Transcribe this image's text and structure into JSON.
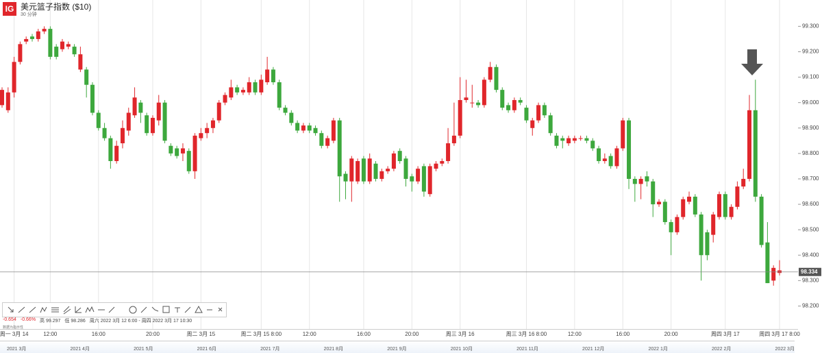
{
  "header": {
    "logo": "IG",
    "title": "美元篮子指数 ($10)",
    "interval": "30 分钟"
  },
  "info": {
    "change": "-0.654",
    "change_pct": "-0.66%",
    "high": "高 99.297",
    "low": "低 98.286",
    "range": "周六 2022 3月 12 6:00 - 周四 2022 3月 17 10:30",
    "note": "数据为指示性"
  },
  "chart_data": {
    "type": "candlestick",
    "categories": [
      null,
      null,
      "周一 3月 14",
      null,
      null,
      null,
      null,
      null,
      "12:00",
      null,
      null,
      null,
      null,
      null,
      null,
      null,
      "16:00",
      null,
      null,
      null,
      null,
      null,
      null,
      null,
      null,
      "20:00",
      null,
      null,
      null,
      null,
      null,
      null,
      null,
      "周二 3月 15",
      null,
      null,
      null,
      null,
      null,
      null,
      null,
      null,
      null,
      "周二 3月 15 8:00",
      null,
      null,
      null,
      null,
      null,
      null,
      null,
      "12:00",
      null,
      null,
      null,
      null,
      null,
      null,
      null,
      null,
      "16:00",
      null,
      null,
      null,
      null,
      null,
      null,
      null,
      "20:00",
      null,
      null,
      null,
      null,
      null,
      null,
      null,
      "周三 3月 16",
      null,
      null,
      null,
      null,
      null,
      null,
      null,
      null,
      null,
      null,
      "周三 3月 16 8:00",
      null,
      null,
      null,
      null,
      null,
      null,
      null,
      "12:00",
      null,
      null,
      null,
      null,
      null,
      null,
      null,
      "16:00",
      null,
      null,
      null,
      null,
      null,
      null,
      null,
      "20:00",
      null,
      null,
      null,
      null,
      null,
      null,
      null,
      null,
      "周四 3月 17",
      null,
      null,
      null,
      null,
      null,
      null,
      null,
      null,
      "周四 3月 17 8:00"
    ],
    "open": [
      98.99,
      98.97,
      99.04,
      99.16,
      99.24,
      99.26,
      99.25,
      99.28,
      99.29,
      99.22,
      99.21,
      99.22,
      99.22,
      99.13,
      99.13,
      99.07,
      98.96,
      98.9,
      98.86,
      98.77,
      98.84,
      98.89,
      98.95,
      99.0,
      98.95,
      98.88,
      98.93,
      99.0,
      98.83,
      98.82,
      98.8,
      98.81,
      98.73,
      98.86,
      98.88,
      98.9,
      98.93,
      99.0,
      99.02,
      99.06,
      99.04,
      99.04,
      99.08,
      99.04,
      99.08,
      99.13,
      99.08,
      98.98,
      98.96,
      98.92,
      98.89,
      98.91,
      98.9,
      98.88,
      98.83,
      98.85,
      98.93,
      98.72,
      98.69,
      98.69,
      98.78,
      98.69,
      98.76,
      98.7,
      98.73,
      98.74,
      98.81,
      98.78,
      98.71,
      98.69,
      98.75,
      98.64,
      98.74,
      98.76,
      98.77,
      98.84,
      98.87,
      99.01,
      99.0,
      99.0,
      98.99,
      99.09,
      99.14,
      99.05,
      98.99,
      98.97,
      99.01,
      98.98,
      98.9,
      98.93,
      98.99,
      98.95,
      98.87,
      98.86,
      98.84,
      98.85,
      98.86,
      98.86,
      98.85,
      98.82,
      98.77,
      98.79,
      98.75,
      98.82,
      98.93,
      98.7,
      98.68,
      98.71,
      98.69,
      98.6,
      98.61,
      98.53,
      98.49,
      98.55,
      98.61,
      98.63,
      98.56,
      98.49,
      98.48,
      98.55,
      98.64,
      98.55,
      98.59,
      98.67,
      98.7,
      98.97,
      98.63,
      98.45,
      98.3,
      98.33
    ],
    "high": [
      99.06,
      99.06,
      99.18,
      99.24,
      99.26,
      99.27,
      99.29,
      99.3,
      99.3,
      99.23,
      99.25,
      99.24,
      99.23,
      99.22,
      99.14,
      99.08,
      98.97,
      98.92,
      98.87,
      98.85,
      98.93,
      98.98,
      99.06,
      99.01,
      98.96,
      98.95,
      99.03,
      99.01,
      98.84,
      98.83,
      98.84,
      98.82,
      98.88,
      98.9,
      98.92,
      98.94,
      99.01,
      99.04,
      99.09,
      99.07,
      99.06,
      99.1,
      99.09,
      99.11,
      99.18,
      99.14,
      99.09,
      98.99,
      98.97,
      98.93,
      98.92,
      98.92,
      98.91,
      98.89,
      98.87,
      98.94,
      98.94,
      98.73,
      98.79,
      98.78,
      98.79,
      98.8,
      98.77,
      98.74,
      98.75,
      98.81,
      98.82,
      98.79,
      98.72,
      98.75,
      98.76,
      98.76,
      98.77,
      98.78,
      98.9,
      99.0,
      99.1,
      99.09,
      99.07,
      99.01,
      99.1,
      99.16,
      99.15,
      99.06,
      99.0,
      99.02,
      99.02,
      98.99,
      98.94,
      99.0,
      99.0,
      98.96,
      98.88,
      98.87,
      98.87,
      98.87,
      98.87,
      98.87,
      98.86,
      98.83,
      98.8,
      98.8,
      98.83,
      98.94,
      98.94,
      98.71,
      98.71,
      98.73,
      98.7,
      98.62,
      98.62,
      98.54,
      98.56,
      98.63,
      98.65,
      98.64,
      98.57,
      98.5,
      98.57,
      98.65,
      98.65,
      98.6,
      98.69,
      98.74,
      99.03,
      99.09,
      98.64,
      98.53,
      98.36,
      98.38
    ],
    "low": [
      98.98,
      98.96,
      99.02,
      99.15,
      99.23,
      99.24,
      99.24,
      99.27,
      99.17,
      99.17,
      99.2,
      99.21,
      99.18,
      99.12,
      99.02,
      98.95,
      98.89,
      98.85,
      98.74,
      98.76,
      98.82,
      98.87,
      98.94,
      98.92,
      98.87,
      98.87,
      98.91,
      98.84,
      98.79,
      98.78,
      98.77,
      98.72,
      98.7,
      98.85,
      98.86,
      98.88,
      98.92,
      98.99,
      99.01,
      99.03,
      99.03,
      99.03,
      99.03,
      99.03,
      99.07,
      99.07,
      98.97,
      98.95,
      98.91,
      98.88,
      98.88,
      98.88,
      98.87,
      98.82,
      98.82,
      98.84,
      98.61,
      98.62,
      98.61,
      98.68,
      98.68,
      98.68,
      98.69,
      98.69,
      98.72,
      98.73,
      98.76,
      98.67,
      98.65,
      98.68,
      98.63,
      98.63,
      98.73,
      98.75,
      98.76,
      98.83,
      98.86,
      99.0,
      98.98,
      98.98,
      98.98,
      99.08,
      99.04,
      98.97,
      98.96,
      98.96,
      98.99,
      98.92,
      98.87,
      98.92,
      98.94,
      98.87,
      98.82,
      98.82,
      98.83,
      98.84,
      98.85,
      98.84,
      98.81,
      98.76,
      98.76,
      98.74,
      98.74,
      98.81,
      98.66,
      98.61,
      98.62,
      98.67,
      98.55,
      98.59,
      98.52,
      98.4,
      98.48,
      98.54,
      98.6,
      98.55,
      98.3,
      98.38,
      98.45,
      98.54,
      98.54,
      98.54,
      98.58,
      98.66,
      98.69,
      98.61,
      98.43,
      98.29,
      98.28,
      98.32
    ],
    "close": [
      99.05,
      99.04,
      99.16,
      99.23,
      99.25,
      99.25,
      99.28,
      99.29,
      99.18,
      99.18,
      99.24,
      99.23,
      99.19,
      99.19,
      99.07,
      98.96,
      98.9,
      98.86,
      98.77,
      98.83,
      98.9,
      98.96,
      99.02,
      98.96,
      98.88,
      98.94,
      99.0,
      98.85,
      98.8,
      98.79,
      98.82,
      98.73,
      98.87,
      98.88,
      98.9,
      98.93,
      99.0,
      99.03,
      99.06,
      99.04,
      99.05,
      99.08,
      99.04,
      99.09,
      99.13,
      99.08,
      98.98,
      98.96,
      98.92,
      98.89,
      98.91,
      98.89,
      98.88,
      98.83,
      98.86,
      98.93,
      98.71,
      98.69,
      98.78,
      98.77,
      98.69,
      98.78,
      98.7,
      98.73,
      98.74,
      98.8,
      98.77,
      98.7,
      98.69,
      98.74,
      98.65,
      98.75,
      98.76,
      98.77,
      98.84,
      98.87,
      99.01,
      99.02,
      99.0,
      98.99,
      99.09,
      99.14,
      99.05,
      98.98,
      98.97,
      99.01,
      99.0,
      98.93,
      98.93,
      98.99,
      98.95,
      98.88,
      98.83,
      98.85,
      98.86,
      98.86,
      98.86,
      98.85,
      98.82,
      98.77,
      98.78,
      98.75,
      98.82,
      98.93,
      98.7,
      98.68,
      98.7,
      98.69,
      98.6,
      98.61,
      98.53,
      98.49,
      98.55,
      98.62,
      98.63,
      98.56,
      98.4,
      98.4,
      98.56,
      98.64,
      98.55,
      98.59,
      98.67,
      98.7,
      98.97,
      98.63,
      98.44,
      98.29,
      98.35,
      98.34
    ],
    "colors": {
      "up": "#e0262b",
      "down": "#3da83d"
    },
    "ylim": [
      98.15,
      99.39
    ],
    "yticks": [
      {
        "value": 98.2,
        "label": "98.200"
      },
      {
        "value": 98.3,
        "label": "98.300"
      },
      {
        "value": 98.4,
        "label": "98.400"
      },
      {
        "value": 98.5,
        "label": "98.500"
      },
      {
        "value": 98.6,
        "label": "98.600"
      },
      {
        "value": 98.7,
        "label": "98.700"
      },
      {
        "value": 98.8,
        "label": "98.800"
      },
      {
        "value": 98.9,
        "label": "98.900"
      },
      {
        "value": 99.0,
        "label": "99.000"
      },
      {
        "value": 99.1,
        "label": "99.100"
      },
      {
        "value": 99.2,
        "label": "99.200"
      },
      {
        "value": 99.3,
        "label": "99.300"
      }
    ],
    "last_price": 98.334,
    "grid": true
  },
  "navigator": {
    "labels": [
      "2021 3月",
      "2021 4月",
      "2021 5月",
      "2021 6月",
      "2021 7月",
      "2021 8月",
      "2021 9月",
      "2021 10月",
      "2021 11月",
      "2021 12月",
      "2022 1月",
      "2022 2月",
      "2022 3月"
    ]
  }
}
